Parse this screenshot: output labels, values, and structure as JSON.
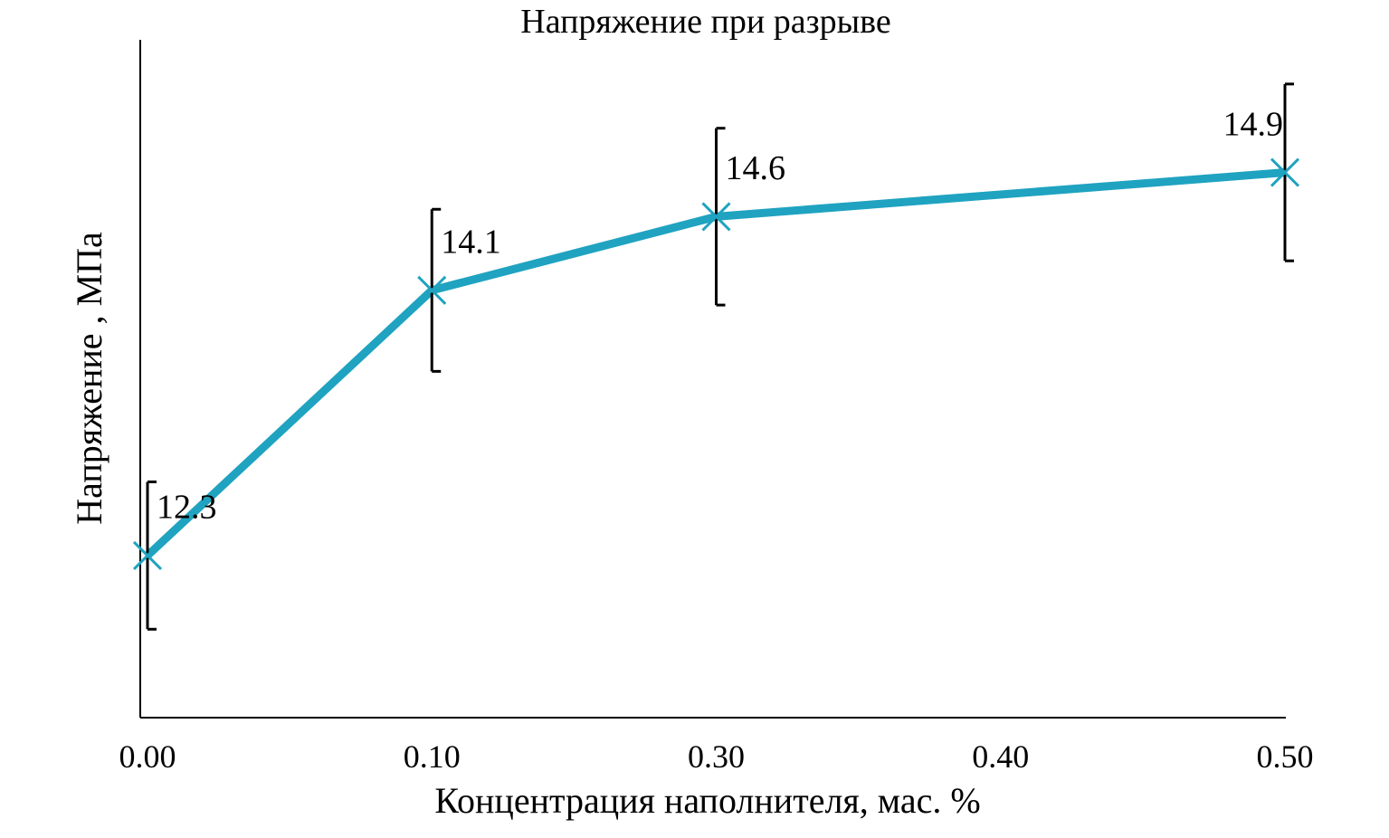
{
  "chart_data": {
    "type": "line",
    "title": "Напряжение при разрыве",
    "x_label": "Концентрация наполнителя, мас. %",
    "y_label": "Напряжение , МПа",
    "x": [
      0,
      0.1,
      0.3,
      0.5
    ],
    "xticks": [
      {
        "value": 0,
        "label": "0.00"
      },
      {
        "value": 0.1,
        "label": "0.10"
      },
      {
        "value": 0.3,
        "label": "0.30"
      },
      {
        "value": 0.4,
        "label": "0.40"
      },
      {
        "value": 0.5,
        "label": "0.50"
      }
    ],
    "xlim": [
      0,
      0.5
    ],
    "ylim": [
      11.2,
      15.8
    ],
    "series": [
      {
        "color": "#1fa3c0",
        "values": [
          12.3,
          14.1,
          14.6,
          14.9
        ],
        "errors": [
          0.5,
          0.55,
          0.6,
          0.6
        ]
      }
    ]
  }
}
